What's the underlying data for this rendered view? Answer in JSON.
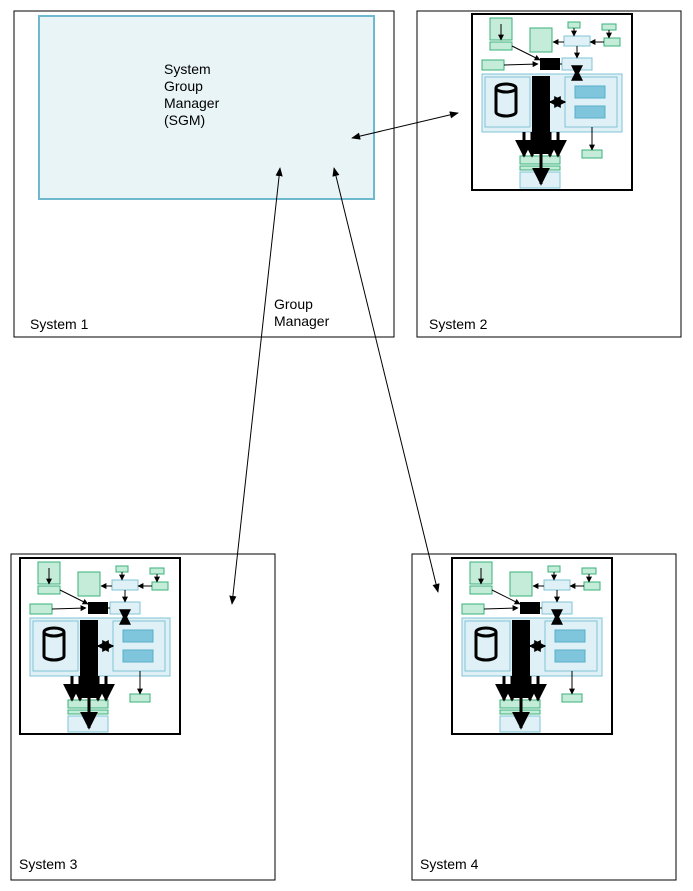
{
  "systems": [
    {
      "label": "System 1",
      "has_sgm": true
    },
    {
      "label": "System 2",
      "has_sgm": false
    },
    {
      "label": "System 3",
      "has_sgm": false
    },
    {
      "label": "System 4",
      "has_sgm": false
    }
  ],
  "sgm": {
    "lines": [
      "System",
      "Group",
      "Manager",
      "(SGM)"
    ]
  },
  "connection_label": {
    "lines": [
      "Group",
      "Manager"
    ]
  },
  "colors": {
    "sgm_fill": "#e8f4f6",
    "sgm_stroke": "#6fb9cf",
    "mini_light_blue": "#dff1f7",
    "mini_blue_stroke": "#7fc3d6",
    "mini_mid_blue": "#7fc6dc",
    "mini_green": "#c5ecd9",
    "mini_green_stroke": "#39b37a"
  }
}
